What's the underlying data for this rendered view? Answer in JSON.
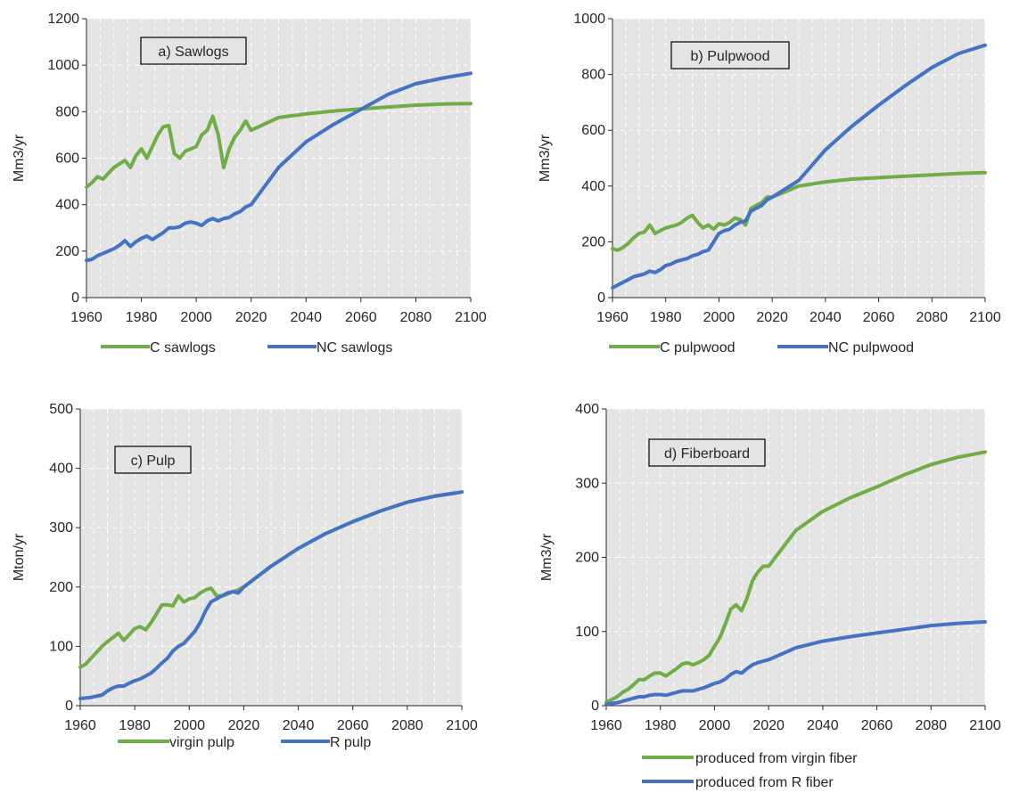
{
  "chart_data": [
    {
      "type": "line",
      "title": "a) Sawlogs",
      "ylabel": "Mm3/yr",
      "xlim": [
        1960,
        2100
      ],
      "ylim": [
        0,
        1200
      ],
      "xticks": [
        "1960",
        "1980",
        "2000",
        "2020",
        "2040",
        "2060",
        "2080",
        "2100"
      ],
      "yticks": [
        "0",
        "200",
        "400",
        "600",
        "800",
        "1000",
        "1200"
      ],
      "grid": true,
      "legend_position": "bottom",
      "series": [
        {
          "name": "C sawlogs",
          "color": "#70AD47",
          "x": [
            1960,
            1962,
            1964,
            1966,
            1968,
            1970,
            1972,
            1974,
            1976,
            1978,
            1980,
            1982,
            1984,
            1986,
            1988,
            1990,
            1992,
            1994,
            1996,
            1998,
            2000,
            2002,
            2004,
            2006,
            2008,
            2010,
            2012,
            2014,
            2016,
            2018,
            2020,
            2030,
            2040,
            2050,
            2060,
            2070,
            2080,
            2090,
            2100
          ],
          "y": [
            475,
            495,
            520,
            510,
            535,
            560,
            575,
            590,
            560,
            610,
            640,
            600,
            650,
            700,
            735,
            740,
            620,
            600,
            630,
            640,
            650,
            700,
            720,
            780,
            700,
            560,
            640,
            690,
            720,
            760,
            720,
            775,
            790,
            803,
            812,
            820,
            828,
            833,
            835
          ]
        },
        {
          "name": "NC sawlogs",
          "color": "#4472C4",
          "x": [
            1960,
            1962,
            1964,
            1966,
            1968,
            1970,
            1972,
            1974,
            1976,
            1978,
            1980,
            1982,
            1984,
            1986,
            1988,
            1990,
            1992,
            1994,
            1996,
            1998,
            2000,
            2002,
            2004,
            2006,
            2008,
            2010,
            2012,
            2014,
            2016,
            2018,
            2020,
            2030,
            2040,
            2050,
            2060,
            2070,
            2080,
            2090,
            2100
          ],
          "y": [
            160,
            165,
            180,
            190,
            200,
            210,
            225,
            245,
            220,
            240,
            255,
            265,
            250,
            265,
            280,
            300,
            300,
            305,
            320,
            325,
            320,
            310,
            330,
            340,
            330,
            340,
            345,
            360,
            370,
            390,
            400,
            560,
            670,
            745,
            810,
            875,
            920,
            945,
            965
          ]
        }
      ]
    },
    {
      "type": "line",
      "title": "b) Pulpwood",
      "ylabel": "Mm3/yr",
      "xlim": [
        1960,
        2100
      ],
      "ylim": [
        0,
        1000
      ],
      "xticks": [
        "1960",
        "1980",
        "2000",
        "2020",
        "2040",
        "2060",
        "2080",
        "2100"
      ],
      "yticks": [
        "0",
        "200",
        "400",
        "600",
        "800",
        "1000"
      ],
      "grid": true,
      "legend_position": "bottom",
      "series": [
        {
          "name": "C pulpwood",
          "color": "#70AD47",
          "x": [
            1960,
            1962,
            1964,
            1966,
            1968,
            1970,
            1972,
            1974,
            1976,
            1978,
            1980,
            1982,
            1984,
            1986,
            1988,
            1990,
            1992,
            1994,
            1996,
            1998,
            2000,
            2002,
            2004,
            2006,
            2008,
            2010,
            2012,
            2014,
            2016,
            2018,
            2020,
            2030,
            2040,
            2050,
            2060,
            2070,
            2080,
            2090,
            2100
          ],
          "y": [
            175,
            170,
            180,
            195,
            215,
            230,
            235,
            260,
            230,
            240,
            250,
            255,
            260,
            270,
            285,
            295,
            270,
            250,
            260,
            245,
            265,
            260,
            270,
            285,
            280,
            260,
            320,
            330,
            340,
            360,
            360,
            400,
            415,
            425,
            430,
            435,
            440,
            445,
            448
          ]
        },
        {
          "name": "NC pulpwood",
          "color": "#4472C4",
          "x": [
            1960,
            1962,
            1964,
            1966,
            1968,
            1970,
            1972,
            1974,
            1976,
            1978,
            1980,
            1982,
            1984,
            1986,
            1988,
            1990,
            1992,
            1994,
            1996,
            1998,
            2000,
            2002,
            2004,
            2006,
            2008,
            2010,
            2012,
            2014,
            2016,
            2018,
            2020,
            2030,
            2040,
            2050,
            2060,
            2070,
            2080,
            2090,
            2100
          ],
          "y": [
            35,
            45,
            55,
            65,
            75,
            80,
            85,
            95,
            90,
            100,
            115,
            120,
            130,
            135,
            140,
            150,
            155,
            165,
            170,
            200,
            230,
            240,
            245,
            260,
            270,
            275,
            310,
            320,
            330,
            350,
            360,
            420,
            530,
            615,
            690,
            760,
            825,
            875,
            905
          ]
        }
      ]
    },
    {
      "type": "line",
      "title": "c) Pulp",
      "ylabel": "Mton/yr",
      "xlim": [
        1960,
        2100
      ],
      "ylim": [
        0,
        500
      ],
      "xticks": [
        "1960",
        "1980",
        "2000",
        "2020",
        "2040",
        "2060",
        "2080",
        "2100"
      ],
      "yticks": [
        "0",
        "100",
        "200",
        "300",
        "400",
        "500"
      ],
      "grid": true,
      "legend_position": "bottom",
      "series": [
        {
          "name": "virgin pulp",
          "color": "#70AD47",
          "x": [
            1960,
            1962,
            1964,
            1966,
            1968,
            1970,
            1972,
            1974,
            1976,
            1978,
            1980,
            1982,
            1984,
            1986,
            1988,
            1990,
            1992,
            1994,
            1996,
            1998,
            2000,
            2002,
            2004,
            2006,
            2008,
            2010,
            2012,
            2014,
            2016,
            2018,
            2020,
            2030,
            2040,
            2050,
            2060,
            2070,
            2080,
            2090,
            2100
          ],
          "y": [
            65,
            70,
            80,
            90,
            100,
            108,
            115,
            122,
            110,
            120,
            130,
            133,
            128,
            140,
            155,
            170,
            170,
            168,
            185,
            175,
            180,
            182,
            190,
            195,
            198,
            185,
            185,
            188,
            192,
            195,
            200,
            235,
            265,
            290,
            310,
            328,
            343,
            353,
            360
          ]
        },
        {
          "name": "R pulp",
          "color": "#4472C4",
          "x": [
            1960,
            1962,
            1964,
            1966,
            1968,
            1970,
            1972,
            1974,
            1976,
            1978,
            1980,
            1982,
            1984,
            1986,
            1988,
            1990,
            1992,
            1994,
            1996,
            1998,
            2000,
            2002,
            2004,
            2006,
            2008,
            2010,
            2012,
            2014,
            2016,
            2018,
            2020,
            2030,
            2040,
            2050,
            2060,
            2070,
            2080,
            2090,
            2100
          ],
          "y": [
            12,
            13,
            14,
            16,
            18,
            25,
            30,
            33,
            33,
            38,
            42,
            45,
            50,
            55,
            63,
            72,
            80,
            92,
            100,
            105,
            115,
            125,
            140,
            160,
            175,
            180,
            185,
            190,
            192,
            190,
            200,
            235,
            265,
            290,
            310,
            328,
            343,
            353,
            360
          ]
        }
      ]
    },
    {
      "type": "line",
      "title": "d) Fiberboard",
      "ylabel": "Mm3/yr",
      "xlim": [
        1960,
        2100
      ],
      "ylim": [
        0,
        400
      ],
      "xticks": [
        "1960",
        "1980",
        "2000",
        "2020",
        "2040",
        "2060",
        "2080",
        "2100"
      ],
      "yticks": [
        "0",
        "100",
        "200",
        "300",
        "400"
      ],
      "grid": true,
      "legend_position": "bottom",
      "series": [
        {
          "name": "produced from virgin fiber",
          "color": "#70AD47",
          "x": [
            1960,
            1962,
            1964,
            1966,
            1968,
            1970,
            1972,
            1974,
            1976,
            1978,
            1980,
            1982,
            1984,
            1986,
            1988,
            1990,
            1992,
            1994,
            1996,
            1998,
            2000,
            2002,
            2004,
            2006,
            2008,
            2010,
            2012,
            2014,
            2016,
            2018,
            2020,
            2030,
            2040,
            2050,
            2060,
            2070,
            2080,
            2090,
            2100
          ],
          "y": [
            5,
            8,
            12,
            18,
            22,
            28,
            35,
            35,
            40,
            44,
            44,
            40,
            45,
            50,
            56,
            58,
            55,
            58,
            62,
            68,
            80,
            92,
            110,
            130,
            136,
            128,
            145,
            168,
            180,
            188,
            188,
            236,
            262,
            280,
            295,
            311,
            325,
            335,
            342
          ]
        },
        {
          "name": "produced from R fiber",
          "color": "#4472C4",
          "x": [
            1960,
            1962,
            1964,
            1966,
            1968,
            1970,
            1972,
            1974,
            1976,
            1978,
            1980,
            1982,
            1984,
            1986,
            1988,
            1990,
            1992,
            1994,
            1996,
            1998,
            2000,
            2002,
            2004,
            2006,
            2008,
            2010,
            2012,
            2014,
            2016,
            2018,
            2020,
            2030,
            2040,
            2050,
            2060,
            2070,
            2080,
            2090,
            2100
          ],
          "y": [
            2,
            3,
            4,
            6,
            8,
            10,
            12,
            12,
            14,
            15,
            15,
            14,
            16,
            18,
            20,
            20,
            20,
            22,
            24,
            27,
            30,
            32,
            36,
            42,
            46,
            44,
            50,
            55,
            58,
            60,
            62,
            78,
            87,
            93,
            98,
            103,
            108,
            111,
            113
          ]
        }
      ]
    }
  ]
}
